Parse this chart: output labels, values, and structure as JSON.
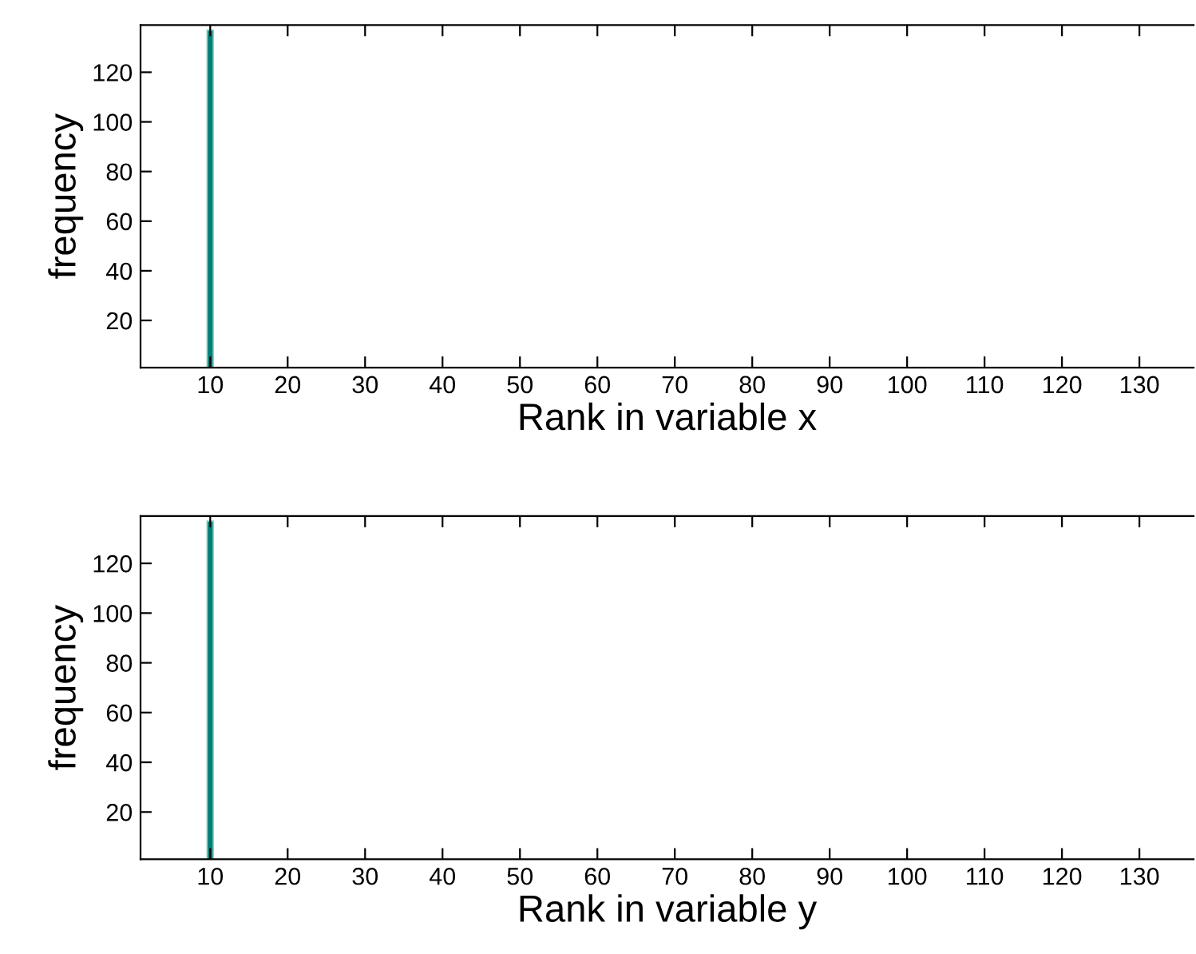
{
  "chart_data": [
    {
      "type": "bar",
      "x": [
        10
      ],
      "values": [
        137
      ],
      "color": "#007f78",
      "xlabel": "Rank in variable x",
      "ylabel": "frequency",
      "xlim": [
        1,
        137
      ],
      "ylim": [
        1,
        139
      ],
      "xticks": [
        10,
        20,
        30,
        40,
        50,
        60,
        70,
        80,
        90,
        100,
        110,
        120,
        130
      ],
      "yticks": [
        20,
        40,
        60,
        80,
        100,
        120
      ],
      "grid": false,
      "legend": false
    },
    {
      "type": "bar",
      "x": [
        10
      ],
      "values": [
        137
      ],
      "color": "#007f78",
      "xlabel": "Rank in variable y",
      "ylabel": "frequency",
      "xlim": [
        1,
        137
      ],
      "ylim": [
        1,
        139
      ],
      "xticks": [
        10,
        20,
        30,
        40,
        50,
        60,
        70,
        80,
        90,
        100,
        110,
        120,
        130
      ],
      "yticks": [
        20,
        40,
        60,
        80,
        100,
        120
      ],
      "grid": false,
      "legend": false
    }
  ]
}
